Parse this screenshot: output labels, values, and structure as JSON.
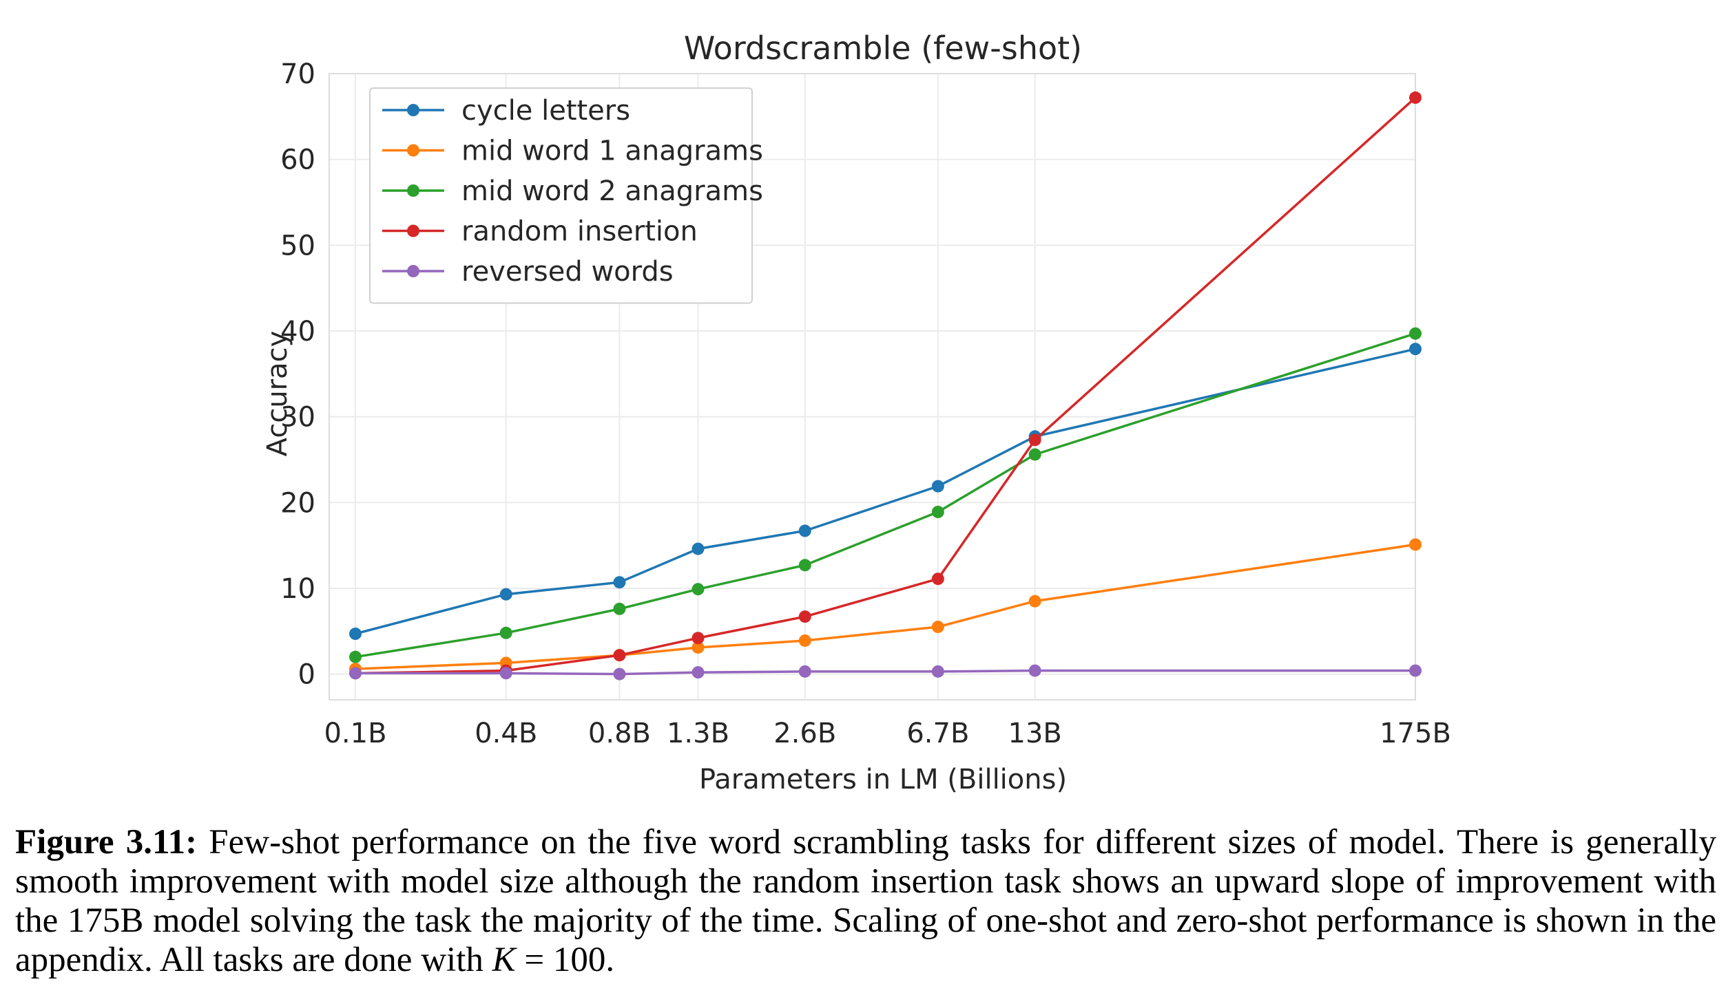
{
  "chart_data": {
    "type": "line",
    "title": "Wordscramble (few-shot)",
    "xlabel": "Parameters in LM (Billions)",
    "ylabel": "Accuracy",
    "x_scale": "log",
    "x": [
      0.125,
      0.35,
      0.76,
      1.3,
      2.7,
      6.7,
      13,
      175
    ],
    "x_tick_labels": [
      "0.1B",
      "0.4B",
      "0.8B",
      "1.3B",
      "2.6B",
      "6.7B",
      "13B",
      "175B"
    ],
    "ylim": [
      -3,
      70
    ],
    "y_ticks": [
      0,
      10,
      20,
      30,
      40,
      50,
      60,
      70
    ],
    "grid": true,
    "legend_position": "top-left",
    "series": [
      {
        "name": "cycle letters",
        "color": "#1f77b4",
        "values": [
          4.7,
          9.3,
          10.7,
          14.6,
          16.7,
          21.9,
          27.7,
          37.9
        ]
      },
      {
        "name": "mid word 1 anagrams",
        "color": "#ff7f0e",
        "values": [
          0.6,
          1.3,
          2.2,
          3.1,
          3.9,
          5.5,
          8.5,
          15.1
        ]
      },
      {
        "name": "mid word 2 anagrams",
        "color": "#2ca02c",
        "values": [
          2.0,
          4.8,
          7.6,
          9.9,
          12.7,
          18.9,
          25.6,
          39.7
        ]
      },
      {
        "name": "random insertion",
        "color": "#d62728",
        "values": [
          0.1,
          0.4,
          2.2,
          4.2,
          6.7,
          11.1,
          27.3,
          67.2
        ]
      },
      {
        "name": "reversed words",
        "color": "#9467bd",
        "values": [
          0.1,
          0.1,
          0.0,
          0.2,
          0.3,
          0.3,
          0.4,
          0.4
        ]
      }
    ]
  },
  "caption": {
    "label": "Figure 3.11:",
    "text": " Few-shot performance on the five word scrambling tasks for different sizes of model. There is generally smooth improvement with model size although the random insertion task shows an upward slope of improvement with the 175B model solving the task the majority of the time. Scaling of one-shot and zero-shot performance is shown in the appendix. All tasks are done with ",
    "math_var": "K",
    "math_rest": " = 100",
    "end": "."
  }
}
